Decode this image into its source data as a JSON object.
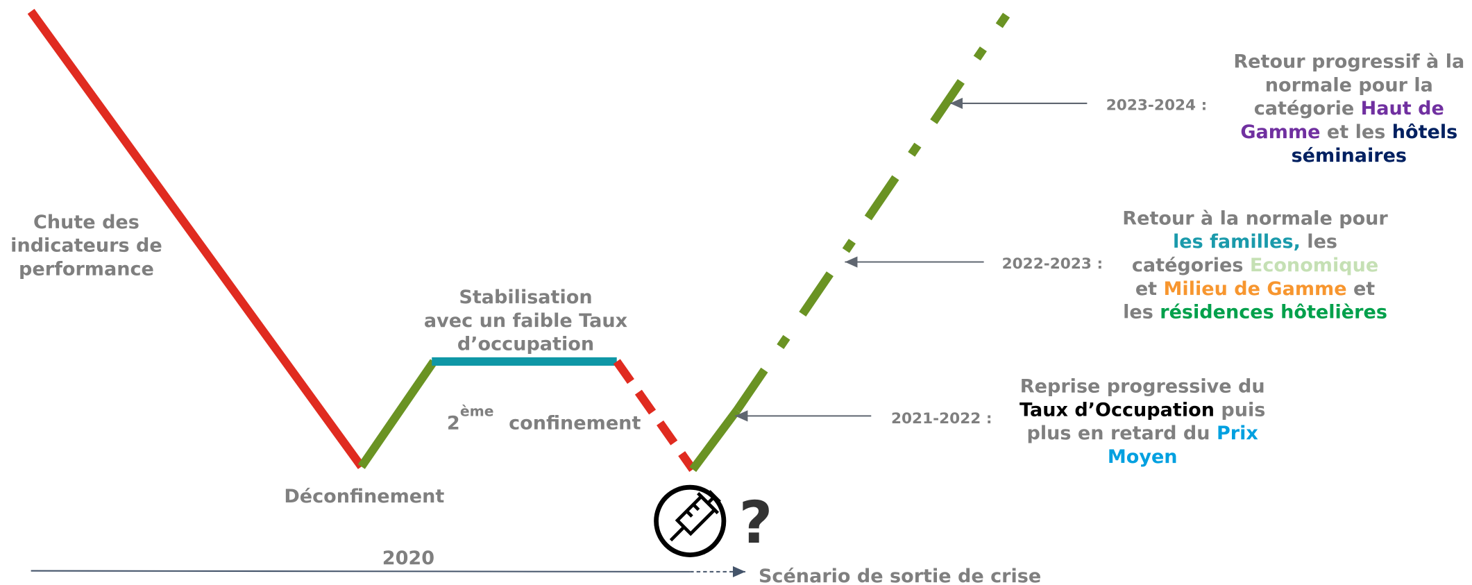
{
  "labels": {
    "chute": [
      "Chute des",
      "indicateurs de",
      "performance"
    ],
    "deconfinement": "Déconfinement",
    "stabilisation": [
      "Stabilisation",
      "avec un faible Taux",
      "d’occupation"
    ],
    "confinement": {
      "number": "2",
      "superscript": "ème",
      "text": "confinement"
    },
    "question": "?",
    "year": "2020",
    "scenario": "Scénario de sortie de crise"
  },
  "annotations": [
    {
      "period": "2023-2024 :",
      "lines": [
        [
          {
            "text": "Retour progressif à la"
          }
        ],
        [
          {
            "text": "normale pour la"
          }
        ],
        [
          {
            "text": "catégorie "
          },
          {
            "text": "Haut de",
            "color": "#7030a0"
          }
        ],
        [
          {
            "text": "Gamme",
            "color": "#7030a0"
          },
          {
            "text": " et les "
          },
          {
            "text": "hôtels",
            "color": "#002060"
          }
        ],
        [
          {
            "text": "séminaires",
            "color": "#002060"
          }
        ]
      ]
    },
    {
      "period": "2022-2023 :",
      "lines": [
        [
          {
            "text": "Retour à la normale pour"
          }
        ],
        [
          {
            "text": "les familles,",
            "color": "#1a9aab"
          },
          {
            "text": " les"
          }
        ],
        [
          {
            "text": "catégories "
          },
          {
            "text": "Economique",
            "color": "#c5e0b4"
          }
        ],
        [
          {
            "text": "et "
          },
          {
            "text": "Milieu de Gamme",
            "color": "#f7962f"
          },
          {
            "text": " et"
          }
        ],
        [
          {
            "text": "les "
          },
          {
            "text": "résidences hôtelières",
            "color": "#00a04b"
          }
        ]
      ]
    },
    {
      "period": "2021-2022 :",
      "lines": [
        [
          {
            "text": "Reprise progressive du"
          }
        ],
        [
          {
            "text": "Taux d’Occupation",
            "color": "#000000"
          },
          {
            "text": " puis"
          }
        ],
        [
          {
            "text": "plus en retard du "
          },
          {
            "text": "Prix",
            "color": "#00a0e0"
          }
        ],
        [
          {
            "text": "Moyen",
            "color": "#00a0e0"
          }
        ]
      ]
    }
  ]
}
